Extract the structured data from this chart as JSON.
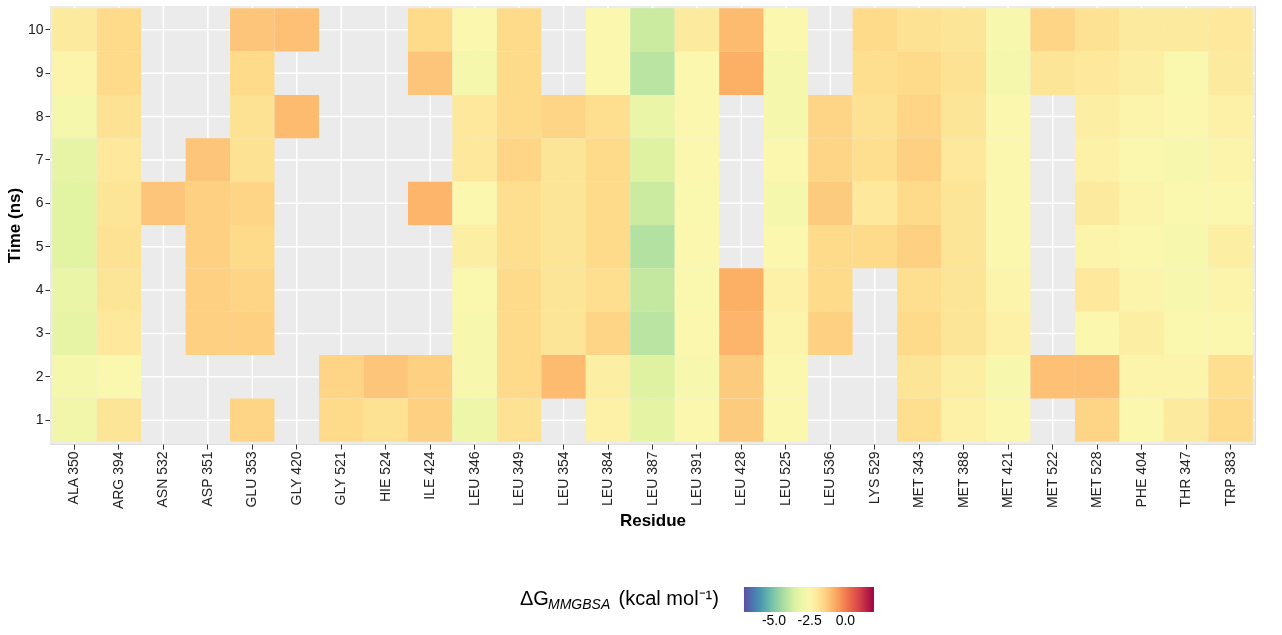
{
  "chart_data": {
    "type": "heatmap",
    "xlabel": "Residue",
    "ylabel": "Time (ns)",
    "legend_title": "ΔG$_{MMGBSA}$ (kcal mol⁻¹)",
    "grid": true,
    "categories": [
      "ALA 350",
      "ARG 394",
      "ASN 532",
      "ASP 351",
      "GLU 353",
      "GLY 420",
      "GLY 521",
      "HIE 524",
      "ILE 424",
      "LEU 346",
      "LEU 349",
      "LEU 354",
      "LEU 384",
      "LEU 387",
      "LEU 391",
      "LEU 428",
      "LEU 525",
      "LEU 536",
      "LYS 529",
      "MET 343",
      "MET 388",
      "MET 421",
      "MET 522",
      "MET 528",
      "PHE 404",
      "THR 347",
      "TRP 383"
    ],
    "y_categories": [
      "10",
      "9",
      "8",
      "7",
      "6",
      "5",
      "4",
      "3",
      "2",
      "1"
    ],
    "clim": [
      -7.1,
      2.0
    ],
    "cticks": [
      {
        "value": -5.0,
        "label": "-5.0"
      },
      {
        "value": -2.5,
        "label": "-2.5"
      },
      {
        "value": 0.0,
        "label": "0.0"
      }
    ],
    "cells": [
      [
        -2.1,
        -1.6,
        null,
        null,
        -1.2,
        -1.1,
        null,
        null,
        -1.6,
        -2.5,
        -1.6,
        null,
        -2.5,
        -3.8,
        -2.1,
        -1.0,
        -2.5,
        null,
        -1.6,
        -1.8,
        -1.9,
        -2.7,
        -1.5,
        -1.8,
        -2.1,
        -2.1,
        -2.0
      ],
      [
        -2.4,
        -1.6,
        null,
        null,
        -1.6,
        null,
        null,
        null,
        -1.2,
        -2.8,
        -1.6,
        null,
        -2.5,
        -4.1,
        -2.5,
        -0.8,
        -2.8,
        null,
        -1.7,
        -1.6,
        -1.8,
        -2.8,
        -1.9,
        -2.0,
        -2.2,
        -2.6,
        -2.1
      ],
      [
        -2.8,
        -1.8,
        null,
        null,
        -1.8,
        -1.0,
        null,
        null,
        null,
        -2.0,
        -1.6,
        -1.5,
        -1.7,
        -3.1,
        -2.5,
        null,
        -2.8,
        -1.5,
        -1.8,
        -1.5,
        -1.9,
        -2.5,
        null,
        -2.2,
        -2.4,
        -2.5,
        -2.3
      ],
      [
        -3.2,
        -2.0,
        null,
        -1.2,
        -1.8,
        null,
        null,
        null,
        null,
        -2.0,
        -1.5,
        -1.9,
        -1.6,
        -3.5,
        -2.5,
        null,
        -2.5,
        -1.5,
        -1.7,
        -1.4,
        -2.0,
        -2.5,
        null,
        -2.3,
        -2.5,
        -2.7,
        -2.4
      ],
      [
        -3.4,
        -1.9,
        -1.2,
        -1.4,
        -1.5,
        null,
        null,
        null,
        -0.9,
        -2.5,
        -1.7,
        -1.9,
        -1.6,
        -3.8,
        -2.6,
        null,
        -2.8,
        -1.3,
        -2.0,
        -1.6,
        -1.9,
        -2.5,
        null,
        -2.1,
        -2.4,
        -2.6,
        -2.5
      ],
      [
        -3.4,
        -1.8,
        null,
        -1.4,
        -1.6,
        null,
        null,
        null,
        null,
        -2.2,
        -1.7,
        -1.9,
        -1.6,
        -4.2,
        -2.5,
        null,
        -2.5,
        -1.6,
        -1.6,
        -1.4,
        -1.9,
        -2.5,
        null,
        -2.4,
        -2.5,
        -2.7,
        -2.2
      ],
      [
        -3.1,
        -1.9,
        null,
        -1.4,
        -1.5,
        null,
        null,
        null,
        null,
        -2.6,
        -1.6,
        -1.9,
        -1.7,
        -3.9,
        -2.6,
        -0.8,
        -2.3,
        -1.6,
        null,
        -1.7,
        -1.9,
        -2.4,
        null,
        -2.0,
        -2.4,
        -2.7,
        -2.4
      ],
      [
        -3.2,
        -2.0,
        null,
        -1.4,
        -1.4,
        null,
        null,
        null,
        null,
        -2.7,
        -1.6,
        -1.9,
        -1.5,
        -4.1,
        -2.5,
        -0.9,
        -2.4,
        -1.4,
        null,
        -1.6,
        -1.9,
        -2.3,
        null,
        -2.5,
        -2.2,
        -2.6,
        -2.5
      ],
      [
        -2.8,
        -2.6,
        null,
        null,
        null,
        null,
        -1.5,
        -1.2,
        -1.4,
        -2.7,
        -1.6,
        -1.0,
        -2.2,
        -3.5,
        -2.7,
        -1.3,
        -2.5,
        null,
        null,
        -1.9,
        -2.2,
        -2.7,
        -1.1,
        -1.1,
        -2.4,
        -2.4,
        -1.7
      ],
      [
        -2.9,
        -1.9,
        null,
        null,
        -1.5,
        null,
        -1.6,
        -1.8,
        -1.4,
        -3.0,
        -1.8,
        null,
        -2.3,
        -3.3,
        -2.5,
        -1.3,
        -2.5,
        null,
        null,
        -1.7,
        -2.3,
        -2.5,
        null,
        -1.5,
        -2.5,
        -2.1,
        -1.6
      ]
    ]
  }
}
